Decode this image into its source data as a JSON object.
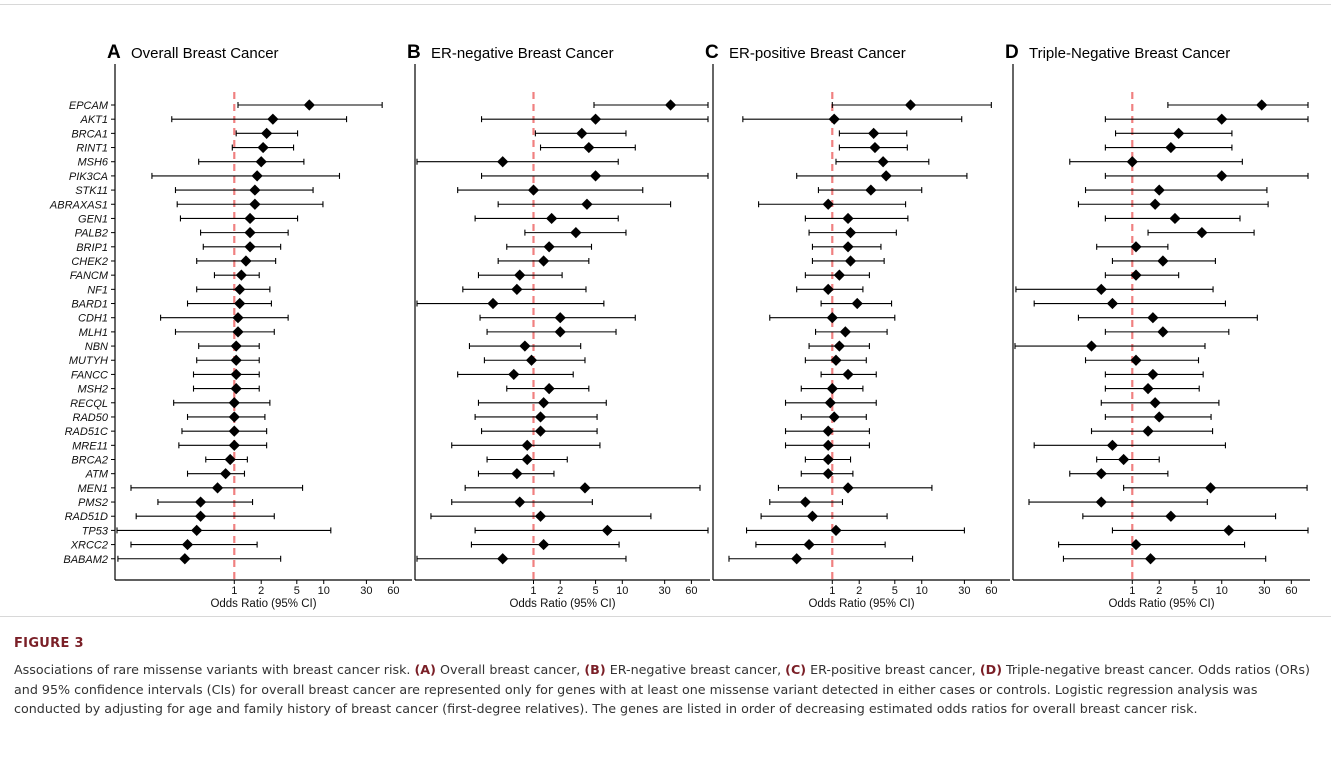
{
  "chart_data": [
    {
      "type": "forest",
      "panel_letter": "A",
      "title": "Overall Breast Cancer",
      "xlabel": "Odds Ratio (95% CI)",
      "x_scale": "log",
      "xlim": [
        0.06,
        75
      ],
      "x_ticks": [
        1,
        2,
        5,
        10,
        30,
        60
      ],
      "reference_line": 1,
      "genes": [
        "EPCAM",
        "AKT1",
        "BRCA1",
        "RINT1",
        "MSH6",
        "PIK3CA",
        "STK11",
        "ABRAXAS1",
        "GEN1",
        "PALB2",
        "BRIP1",
        "CHEK2",
        "FANCM",
        "NF1",
        "BARD1",
        "CDH1",
        "MLH1",
        "NBN",
        "MUTYH",
        "FANCC",
        "MSH2",
        "RECQL",
        "RAD50",
        "RAD51C",
        "MRE11",
        "BRCA2",
        "ATM",
        "MEN1",
        "PMS2",
        "RAD51D",
        "TP53",
        "XRCC2",
        "BABAM2"
      ],
      "or": [
        6.9,
        2.7,
        2.3,
        2.1,
        2.0,
        1.8,
        1.7,
        1.7,
        1.5,
        1.5,
        1.5,
        1.35,
        1.2,
        1.15,
        1.15,
        1.1,
        1.1,
        1.05,
        1.05,
        1.05,
        1.05,
        1.0,
        1.0,
        1.0,
        1.0,
        0.9,
        0.8,
        0.65,
        0.42,
        0.42,
        0.38,
        0.3,
        0.28
      ],
      "lo": [
        1.1,
        0.2,
        1.05,
        0.95,
        0.4,
        0.12,
        0.22,
        0.23,
        0.25,
        0.42,
        0.45,
        0.38,
        0.6,
        0.38,
        0.3,
        0.15,
        0.22,
        0.4,
        0.38,
        0.35,
        0.35,
        0.21,
        0.3,
        0.26,
        0.24,
        0.48,
        0.3,
        0.07,
        0.14,
        0.08,
        0.03,
        0.07,
        0.05
      ],
      "hi": [
        45,
        18,
        5.1,
        4.6,
        6.0,
        15,
        7.6,
        9.8,
        5.1,
        4.0,
        3.3,
        2.9,
        1.9,
        2.5,
        2.6,
        4.0,
        2.8,
        1.9,
        1.9,
        1.9,
        1.9,
        2.5,
        2.2,
        2.3,
        2.3,
        1.4,
        1.3,
        5.8,
        1.6,
        2.8,
        12,
        1.8,
        3.3
      ]
    },
    {
      "type": "forest",
      "panel_letter": "B",
      "title": "ER-negative Breast Cancer",
      "xlabel": "Odds Ratio (95% CI)",
      "x_scale": "log",
      "xlim": [
        0.06,
        75
      ],
      "x_ticks": [
        1,
        2,
        5,
        10,
        30,
        60
      ],
      "reference_line": 1,
      "genes": [
        "EPCAM",
        "AKT1",
        "BRCA1",
        "RINT1",
        "MSH6",
        "PIK3CA",
        "STK11",
        "ABRAXAS1",
        "GEN1",
        "PALB2",
        "BRIP1",
        "CHEK2",
        "FANCM",
        "NF1",
        "BARD1",
        "CDH1",
        "MLH1",
        "NBN",
        "MUTYH",
        "FANCC",
        "MSH2",
        "RECQL",
        "RAD50",
        "RAD51C",
        "MRE11",
        "BRCA2",
        "ATM",
        "MEN1",
        "PMS2",
        "RAD51D",
        "TP53",
        "XRCC2",
        "BABAM2"
      ],
      "or": [
        35,
        5,
        3.5,
        4.2,
        0.45,
        5,
        1.0,
        4,
        1.6,
        3,
        1.5,
        1.3,
        0.7,
        0.65,
        0.35,
        2,
        2,
        0.8,
        0.95,
        0.6,
        1.5,
        1.3,
        1.2,
        1.2,
        0.85,
        0.85,
        0.65,
        3.8,
        0.7,
        1.2,
        6.8,
        1.3,
        0.45
      ],
      "lo": [
        4.8,
        0.26,
        1.05,
        1.2,
        0.03,
        0.26,
        0.14,
        0.4,
        0.22,
        0.8,
        0.5,
        0.4,
        0.24,
        0.16,
        0.02,
        0.25,
        0.3,
        0.19,
        0.28,
        0.14,
        0.5,
        0.24,
        0.22,
        0.26,
        0.12,
        0.3,
        0.24,
        0.17,
        0.12,
        0.07,
        0.22,
        0.2,
        0.02
      ],
      "hi": [
        180,
        110,
        11,
        14,
        9,
        110,
        17,
        35,
        9,
        11,
        4.5,
        4.2,
        2.1,
        3.9,
        6.2,
        14,
        8.5,
        3.4,
        3.8,
        2.8,
        4.2,
        6.6,
        5.2,
        5.2,
        5.6,
        2.4,
        1.7,
        75,
        4.6,
        21,
        150,
        9.2,
        11
      ]
    },
    {
      "type": "forest",
      "panel_letter": "C",
      "title": "ER-positive Breast Cancer",
      "xlabel": "Odds Ratio (95% CI)",
      "x_scale": "log",
      "xlim": [
        0.06,
        75
      ],
      "x_ticks": [
        1,
        2,
        5,
        10,
        30,
        60
      ],
      "reference_line": 1,
      "genes": [
        "EPCAM",
        "AKT1",
        "BRCA1",
        "RINT1",
        "MSH6",
        "PIK3CA",
        "STK11",
        "ABRAXAS1",
        "GEN1",
        "PALB2",
        "BRIP1",
        "CHEK2",
        "FANCM",
        "NF1",
        "BARD1",
        "CDH1",
        "MLH1",
        "NBN",
        "MUTYH",
        "FANCC",
        "MSH2",
        "RECQL",
        "RAD50",
        "RAD51C",
        "MRE11",
        "BRCA2",
        "ATM",
        "MEN1",
        "PMS2",
        "RAD51D",
        "TP53",
        "XRCC2",
        "BABAM2"
      ],
      "or": [
        7.5,
        1.05,
        2.9,
        3.0,
        3.7,
        4.0,
        2.7,
        0.9,
        1.5,
        1.6,
        1.5,
        1.6,
        1.2,
        0.9,
        1.9,
        1.0,
        1.4,
        1.2,
        1.1,
        1.5,
        1.0,
        0.95,
        1.05,
        0.9,
        0.9,
        0.9,
        0.9,
        1.5,
        0.5,
        0.6,
        1.1,
        0.55,
        0.4
      ],
      "lo": [
        1.0,
        0.1,
        1.2,
        1.2,
        1.1,
        0.4,
        0.7,
        0.15,
        0.5,
        0.55,
        0.6,
        0.6,
        0.5,
        0.4,
        0.75,
        0.2,
        0.65,
        0.55,
        0.5,
        0.75,
        0.45,
        0.3,
        0.45,
        0.3,
        0.3,
        0.5,
        0.45,
        0.25,
        0.2,
        0.16,
        0.11,
        0.14,
        0.07
      ],
      "hi": [
        60,
        28,
        6.8,
        6.9,
        12,
        32,
        10,
        6.6,
        7.0,
        5.2,
        3.5,
        3.8,
        2.6,
        2.2,
        4.6,
        5.0,
        4.1,
        2.6,
        2.4,
        3.1,
        2.2,
        3.1,
        2.4,
        2.6,
        2.6,
        1.6,
        1.7,
        13,
        1.3,
        4.1,
        30,
        3.9,
        7.9
      ]
    },
    {
      "type": "forest",
      "panel_letter": "D",
      "title": "Triple-Negative Breast Cancer",
      "xlabel": "Odds Ratio (95% CI)",
      "x_scale": "log",
      "xlim": [
        0.06,
        75
      ],
      "x_ticks": [
        1,
        2,
        5,
        10,
        30,
        60
      ],
      "reference_line": 1,
      "genes": [
        "EPCAM",
        "AKT1",
        "BRCA1",
        "RINT1",
        "MSH6",
        "PIK3CA",
        "STK11",
        "ABRAXAS1",
        "GEN1",
        "PALB2",
        "BRIP1",
        "CHEK2",
        "FANCM",
        "NF1",
        "BARD1",
        "CDH1",
        "MLH1",
        "NBN",
        "MUTYH",
        "FANCC",
        "MSH2",
        "RECQL",
        "RAD50",
        "RAD51C",
        "MRE11",
        "BRCA2",
        "ATM",
        "MEN1",
        "PMS2",
        "RAD51D",
        "TP53",
        "XRCC2",
        "BABAM2"
      ],
      "or": [
        28,
        10,
        3.3,
        2.7,
        1.0,
        10,
        2.0,
        1.8,
        3.0,
        6.0,
        1.1,
        2.2,
        1.1,
        0.45,
        0.6,
        1.7,
        2.2,
        0.35,
        1.1,
        1.7,
        1.5,
        1.8,
        2.0,
        1.5,
        0.6,
        0.8,
        0.45,
        7.5,
        0.45,
        2.7,
        12,
        1.1,
        1.6
      ],
      "lo": [
        2.5,
        0.5,
        0.65,
        0.5,
        0.2,
        0.5,
        0.3,
        0.25,
        0.5,
        1.5,
        0.4,
        0.6,
        0.5,
        0.05,
        0.08,
        0.25,
        0.5,
        0.04,
        0.3,
        0.5,
        0.5,
        0.45,
        0.5,
        0.35,
        0.08,
        0.4,
        0.2,
        0.8,
        0.07,
        0.28,
        0.6,
        0.15,
        0.17
      ],
      "hi": [
        150,
        140,
        13,
        13,
        17,
        140,
        32,
        33,
        16,
        23,
        2.5,
        8.5,
        3.3,
        8.0,
        11,
        25,
        12,
        6.5,
        5.5,
        6.2,
        5.6,
        9.3,
        7.6,
        7.9,
        11,
        2.0,
        2.5,
        90,
        6.9,
        40,
        190,
        18,
        31
      ]
    }
  ],
  "caption": {
    "label": "FIGURE 3",
    "parts": [
      {
        "text": "Associations of rare missense variants with breast cancer risk. ",
        "bold": false
      },
      {
        "text": "(A)",
        "bold": true
      },
      {
        "text": " Overall breast cancer, ",
        "bold": false
      },
      {
        "text": "(B)",
        "bold": true
      },
      {
        "text": " ER-negative breast cancer, ",
        "bold": false
      },
      {
        "text": "(C)",
        "bold": true
      },
      {
        "text": " ER-positive breast cancer, ",
        "bold": false
      },
      {
        "text": "(D)",
        "bold": true
      },
      {
        "text": " Triple-negative breast cancer. Odds ratios (ORs) and 95% confidence intervals (CIs) for overall breast cancer are represented only for genes with at least one missense variant detected in either cases or controls. Logistic regression analysis was conducted by adjusting for age and family history of breast cancer (first-degree relatives). The genes are listed in order of decreasing estimated odds ratios for overall breast cancer risk.",
        "bold": false
      }
    ]
  },
  "colors": {
    "reference_line": "#f08080",
    "marker": "#000000",
    "axis": "#000000",
    "caption_label": "#7a1f27"
  }
}
